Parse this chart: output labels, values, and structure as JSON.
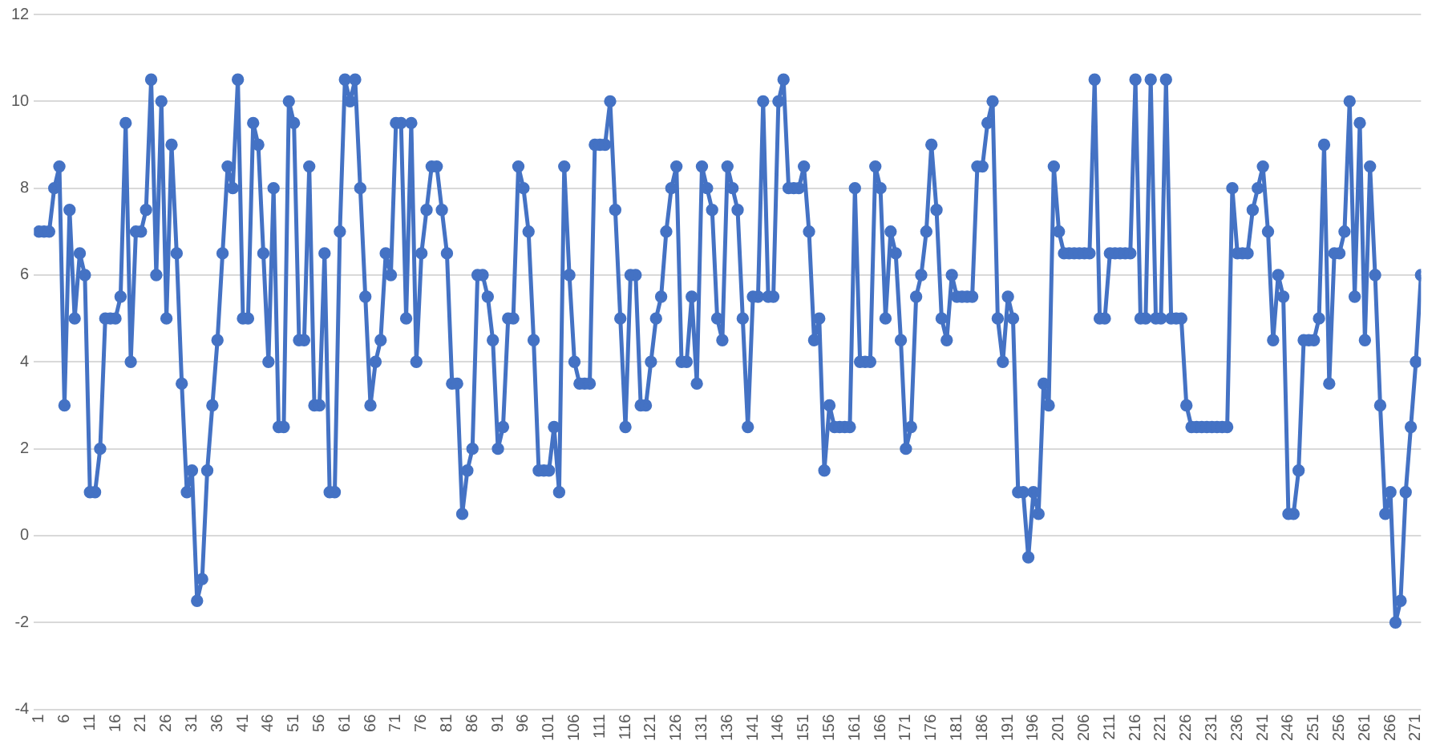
{
  "chart_data": {
    "type": "line",
    "x": [
      1,
      2,
      3,
      4,
      5,
      6,
      7,
      8,
      9,
      10,
      11,
      12,
      13,
      14,
      15,
      16,
      17,
      18,
      19,
      20,
      21,
      22,
      23,
      24,
      25,
      26,
      27,
      28,
      29,
      30,
      31,
      32,
      33,
      34,
      35,
      36,
      37,
      38,
      39,
      40,
      41,
      42,
      43,
      44,
      45,
      46,
      47,
      48,
      49,
      50,
      51,
      52,
      53,
      54,
      55,
      56,
      57,
      58,
      59,
      60,
      61,
      62,
      63,
      64,
      65,
      66,
      67,
      68,
      69,
      70,
      71,
      72,
      73,
      74,
      75,
      76,
      77,
      78,
      79,
      80,
      81,
      82,
      83,
      84,
      85,
      86,
      87,
      88,
      89,
      90,
      91,
      92,
      93,
      94,
      95,
      96,
      97,
      98,
      99,
      100,
      101,
      102,
      103,
      104,
      105,
      106,
      107,
      108,
      109,
      110,
      111,
      112,
      113,
      114,
      115,
      116,
      117,
      118,
      119,
      120,
      121,
      122,
      123,
      124,
      125,
      126,
      127,
      128,
      129,
      130,
      131,
      132,
      133,
      134,
      135,
      136,
      137,
      138,
      139,
      140,
      141,
      142,
      143,
      144,
      145,
      146,
      147,
      148,
      149,
      150,
      151,
      152,
      153,
      154,
      155,
      156,
      157,
      158,
      159,
      160,
      161,
      162,
      163,
      164,
      165,
      166,
      167,
      168,
      169,
      170,
      171,
      172,
      173,
      174,
      175,
      176,
      177,
      178,
      179,
      180,
      181,
      182,
      183,
      184,
      185,
      186,
      187,
      188,
      189,
      190,
      191,
      192,
      193,
      194,
      195,
      196,
      197,
      198,
      199,
      200,
      201,
      202,
      203,
      204,
      205,
      206,
      207,
      208,
      209,
      210,
      211,
      212,
      213,
      214,
      215,
      216,
      217,
      218,
      219,
      220,
      221,
      222,
      223,
      224,
      225,
      226,
      227,
      228,
      229,
      230,
      231,
      232,
      233,
      234,
      235,
      236,
      237,
      238,
      239,
      240,
      241,
      242,
      243,
      244,
      245,
      246,
      247,
      248,
      249,
      250,
      251,
      252,
      253,
      254,
      255,
      256,
      257,
      258,
      259,
      260,
      261,
      262,
      263,
      264,
      265,
      266,
      267,
      268,
      269,
      270,
      271,
      272
    ],
    "series": [
      {
        "color": "#4472c4",
        "values": [
          7,
          7,
          7,
          8,
          8.5,
          3,
          7.5,
          5,
          6.5,
          6,
          1,
          1,
          2,
          5,
          5,
          5,
          5.5,
          9.5,
          4,
          7,
          7,
          7.5,
          10.5,
          6,
          10,
          5,
          9,
          6.5,
          3.5,
          1,
          1.5,
          -1.5,
          -1,
          1.5,
          3,
          4.5,
          6.5,
          8.5,
          8,
          10.5,
          5,
          5,
          9.5,
          9,
          6.5,
          4,
          8,
          2.5,
          2.5,
          10,
          9.5,
          4.5,
          4.5,
          8.5,
          3,
          3,
          6.5,
          1,
          1,
          7,
          10.5,
          10,
          10.5,
          8,
          5.5,
          3,
          4,
          4.5,
          6.5,
          6,
          9.5,
          9.5,
          5,
          9.5,
          4,
          6.5,
          7.5,
          8.5,
          8.5,
          7.5,
          6.5,
          3.5,
          3.5,
          0.5,
          1.5,
          2,
          6,
          6,
          5.5,
          4.5,
          2,
          2.5,
          5,
          5,
          8.5,
          8,
          7,
          4.5,
          1.5,
          1.5,
          1.5,
          2.5,
          1,
          8.5,
          6,
          4,
          3.5,
          3.5,
          3.5,
          9,
          9,
          9,
          10,
          7.5,
          5,
          2.5,
          6,
          6,
          3,
          3,
          4,
          5,
          5.5,
          7,
          8,
          8.5,
          4,
          4,
          5.5,
          3.5,
          8.5,
          8,
          7.5,
          5,
          4.5,
          8.5,
          8,
          7.5,
          5,
          2.5,
          5.5,
          5.5,
          10,
          5.5,
          5.5,
          10,
          10.5,
          8,
          8,
          8,
          8.5,
          7,
          4.5,
          5,
          1.5,
          3,
          2.5,
          2.5,
          2.5,
          2.5,
          8,
          4,
          4,
          4,
          8.5,
          8,
          5,
          7,
          6.5,
          4.5,
          2,
          2.5,
          5.5,
          6,
          7,
          9,
          7.5,
          5,
          4.5,
          6,
          5.5,
          5.5,
          5.5,
          5.5,
          8.5,
          8.5,
          9.5,
          10,
          5,
          4,
          5.5,
          5,
          1,
          1,
          -0.5,
          1,
          0.5,
          3.5,
          3,
          8.5,
          7,
          6.5,
          6.5,
          6.5,
          6.5,
          6.5,
          6.5,
          10.5,
          5,
          5,
          6.5,
          6.5,
          6.5,
          6.5,
          6.5,
          10.5,
          5,
          5,
          10.5,
          5,
          5,
          10.5,
          5,
          5,
          5,
          3,
          2.5,
          2.5,
          2.5,
          2.5,
          2.5,
          2.5,
          2.5,
          2.5,
          8,
          6.5,
          6.5,
          6.5,
          7.5,
          8,
          8.5,
          7,
          4.5,
          6,
          5.5,
          0.5,
          0.5,
          1.5,
          4.5,
          4.5,
          4.5,
          5,
          9,
          3.5,
          6.5,
          6.5,
          7,
          10,
          5.5,
          9.5,
          4.5,
          8.5,
          6,
          3,
          0.5,
          1,
          -2,
          -1.5,
          1,
          2.5,
          4,
          6
        ]
      }
    ],
    "xlim": [
      0,
      272
    ],
    "xticks": [
      1,
      6,
      11,
      16,
      21,
      26,
      31,
      36,
      41,
      46,
      51,
      56,
      61,
      66,
      71,
      76,
      81,
      86,
      91,
      96,
      101,
      106,
      111,
      116,
      121,
      126,
      131,
      136,
      141,
      146,
      151,
      156,
      161,
      166,
      171,
      176,
      181,
      186,
      191,
      196,
      201,
      206,
      211,
      216,
      221,
      226,
      231,
      236,
      241,
      246,
      251,
      256,
      261,
      266,
      271
    ],
    "ylim": [
      -4,
      12
    ],
    "yticks": [
      -4,
      -2,
      0,
      2,
      4,
      6,
      8,
      10,
      12
    ],
    "grid": "y",
    "legend": false,
    "marker": "circle",
    "line_style": "solid"
  }
}
